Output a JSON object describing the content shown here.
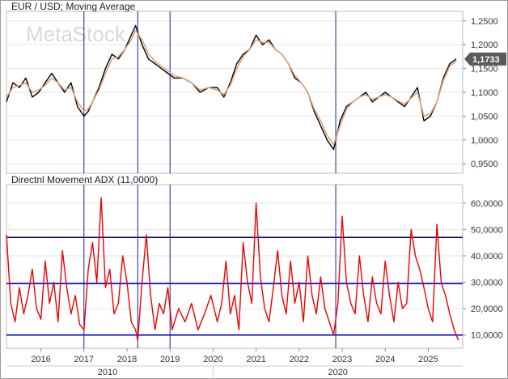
{
  "watermark": "MetaStock",
  "chart_data": [
    {
      "type": "line",
      "title": "EUR / USD; Moving Average",
      "x_ticks": [
        "2016",
        "2017",
        "2018",
        "2019",
        "2020",
        "2021",
        "2022",
        "2023",
        "2024",
        "2025"
      ],
      "x_major_ticks": [
        "2010",
        "2020"
      ],
      "y_ticks": [
        "1,2500",
        "1,2000",
        "1,1500",
        "1,1000",
        "1,0500",
        "1,0000",
        "0,9500"
      ],
      "ylim": [
        0.93,
        1.27
      ],
      "last_price_label": "1,1733",
      "vertical_markers": [
        2017.0,
        2018.25,
        2019.0,
        2022.85
      ],
      "series": [
        {
          "name": "",
          "color": "#000000",
          "x": [
            2015.2,
            2015.35,
            2015.5,
            2015.65,
            2015.8,
            2015.95,
            2016.1,
            2016.25,
            2016.4,
            2016.55,
            2016.7,
            2016.85,
            2017.0,
            2017.1,
            2017.2,
            2017.35,
            2017.5,
            2017.65,
            2017.8,
            2017.95,
            2018.1,
            2018.2,
            2018.35,
            2018.5,
            2018.65,
            2018.8,
            2018.95,
            2019.1,
            2019.3,
            2019.5,
            2019.7,
            2019.9,
            2020.1,
            2020.25,
            2020.4,
            2020.55,
            2020.7,
            2020.85,
            2021.0,
            2021.15,
            2021.3,
            2021.45,
            2021.6,
            2021.75,
            2021.9,
            2022.05,
            2022.2,
            2022.35,
            2022.5,
            2022.65,
            2022.8,
            2022.95,
            2023.1,
            2023.25,
            2023.4,
            2023.55,
            2023.7,
            2023.85,
            2024.0,
            2024.15,
            2024.3,
            2024.45,
            2024.6,
            2024.75,
            2024.9,
            2025.05,
            2025.2,
            2025.35,
            2025.5,
            2025.65
          ],
          "y": [
            1.08,
            1.12,
            1.11,
            1.13,
            1.09,
            1.1,
            1.12,
            1.14,
            1.12,
            1.1,
            1.12,
            1.07,
            1.05,
            1.06,
            1.08,
            1.11,
            1.15,
            1.18,
            1.17,
            1.19,
            1.22,
            1.24,
            1.2,
            1.17,
            1.16,
            1.15,
            1.14,
            1.13,
            1.13,
            1.12,
            1.1,
            1.11,
            1.11,
            1.09,
            1.12,
            1.16,
            1.18,
            1.19,
            1.22,
            1.2,
            1.21,
            1.19,
            1.18,
            1.16,
            1.13,
            1.12,
            1.1,
            1.06,
            1.03,
            1.0,
            0.98,
            1.04,
            1.07,
            1.08,
            1.09,
            1.1,
            1.08,
            1.09,
            1.1,
            1.09,
            1.08,
            1.07,
            1.09,
            1.11,
            1.04,
            1.05,
            1.08,
            1.13,
            1.16,
            1.17
          ]
        },
        {
          "name": "",
          "color": "#e0a27a",
          "x": [
            2015.2,
            2015.35,
            2015.5,
            2015.65,
            2015.8,
            2015.95,
            2016.1,
            2016.25,
            2016.4,
            2016.55,
            2016.7,
            2016.85,
            2017.0,
            2017.1,
            2017.2,
            2017.35,
            2017.5,
            2017.65,
            2017.8,
            2017.95,
            2018.1,
            2018.2,
            2018.35,
            2018.5,
            2018.65,
            2018.8,
            2018.95,
            2019.1,
            2019.3,
            2019.5,
            2019.7,
            2019.9,
            2020.1,
            2020.25,
            2020.4,
            2020.55,
            2020.7,
            2020.85,
            2021.0,
            2021.15,
            2021.3,
            2021.45,
            2021.6,
            2021.75,
            2021.9,
            2022.05,
            2022.2,
            2022.35,
            2022.5,
            2022.65,
            2022.8,
            2022.95,
            2023.1,
            2023.25,
            2023.4,
            2023.55,
            2023.7,
            2023.85,
            2024.0,
            2024.15,
            2024.3,
            2024.45,
            2024.6,
            2024.75,
            2024.9,
            2025.05,
            2025.2,
            2025.35,
            2025.5,
            2025.65
          ],
          "y": [
            1.09,
            1.11,
            1.115,
            1.12,
            1.1,
            1.105,
            1.115,
            1.13,
            1.12,
            1.105,
            1.11,
            1.08,
            1.06,
            1.065,
            1.08,
            1.105,
            1.14,
            1.17,
            1.175,
            1.19,
            1.21,
            1.23,
            1.21,
            1.18,
            1.165,
            1.155,
            1.145,
            1.135,
            1.13,
            1.12,
            1.105,
            1.11,
            1.105,
            1.095,
            1.115,
            1.15,
            1.175,
            1.19,
            1.21,
            1.205,
            1.205,
            1.19,
            1.18,
            1.16,
            1.135,
            1.12,
            1.1,
            1.065,
            1.04,
            1.01,
            0.99,
            1.03,
            1.065,
            1.08,
            1.09,
            1.095,
            1.085,
            1.09,
            1.095,
            1.09,
            1.082,
            1.075,
            1.088,
            1.1,
            1.05,
            1.055,
            1.08,
            1.125,
            1.155,
            1.165
          ]
        }
      ]
    },
    {
      "type": "line",
      "title": "Directnl Movement ADX (11,0000)",
      "y_ticks": [
        "60,0000",
        "50,0000",
        "40,0000",
        "30,0000",
        "20,0000",
        "10,0000"
      ],
      "ylim": [
        5,
        67
      ],
      "hlines": [
        {
          "value": 47,
          "color": "#00006e"
        },
        {
          "value": 29.5,
          "color": "#0000cc"
        },
        {
          "value": 10,
          "color": "#0000cc"
        }
      ],
      "vertical_markers": [
        2017.0,
        2018.25,
        2019.0,
        2022.85
      ],
      "series": [
        {
          "name": "",
          "color": "#ee0000",
          "x": [
            2015.2,
            2015.3,
            2015.4,
            2015.5,
            2015.6,
            2015.7,
            2015.8,
            2015.9,
            2016.0,
            2016.1,
            2016.2,
            2016.3,
            2016.4,
            2016.5,
            2016.6,
            2016.7,
            2016.8,
            2016.9,
            2017.0,
            2017.1,
            2017.2,
            2017.3,
            2017.4,
            2017.5,
            2017.6,
            2017.7,
            2017.8,
            2017.9,
            2018.0,
            2018.1,
            2018.2,
            2018.25,
            2018.35,
            2018.45,
            2018.55,
            2018.65,
            2018.75,
            2018.85,
            2018.95,
            2019.05,
            2019.2,
            2019.35,
            2019.5,
            2019.65,
            2019.8,
            2019.95,
            2020.1,
            2020.2,
            2020.3,
            2020.4,
            2020.5,
            2020.6,
            2020.7,
            2020.8,
            2020.9,
            2021.0,
            2021.1,
            2021.2,
            2021.3,
            2021.4,
            2021.5,
            2021.6,
            2021.7,
            2021.8,
            2021.9,
            2022.0,
            2022.1,
            2022.2,
            2022.3,
            2022.4,
            2022.5,
            2022.6,
            2022.7,
            2022.8,
            2022.9,
            2023.0,
            2023.1,
            2023.2,
            2023.3,
            2023.4,
            2023.5,
            2023.6,
            2023.7,
            2023.8,
            2023.9,
            2024.0,
            2024.1,
            2024.2,
            2024.3,
            2024.4,
            2024.5,
            2024.6,
            2024.7,
            2024.8,
            2024.9,
            2025.0,
            2025.1,
            2025.2,
            2025.3,
            2025.4,
            2025.5,
            2025.6,
            2025.7
          ],
          "y": [
            48,
            22,
            15,
            28,
            18,
            25,
            35,
            20,
            16,
            38,
            22,
            30,
            15,
            42,
            28,
            18,
            25,
            14,
            12,
            35,
            45,
            30,
            62,
            28,
            35,
            18,
            22,
            40,
            30,
            15,
            12,
            8,
            30,
            48,
            25,
            12,
            22,
            18,
            28,
            12,
            20,
            15,
            22,
            12,
            18,
            25,
            15,
            22,
            38,
            18,
            25,
            12,
            45,
            30,
            22,
            60,
            32,
            20,
            15,
            28,
            42,
            25,
            18,
            38,
            22,
            30,
            15,
            40,
            25,
            18,
            32,
            20,
            15,
            10,
            22,
            55,
            30,
            22,
            18,
            40,
            25,
            15,
            32,
            22,
            18,
            38,
            25,
            15,
            30,
            20,
            22,
            50,
            40,
            35,
            28,
            20,
            15,
            52,
            30,
            25,
            18,
            12,
            8
          ]
        }
      ]
    }
  ]
}
